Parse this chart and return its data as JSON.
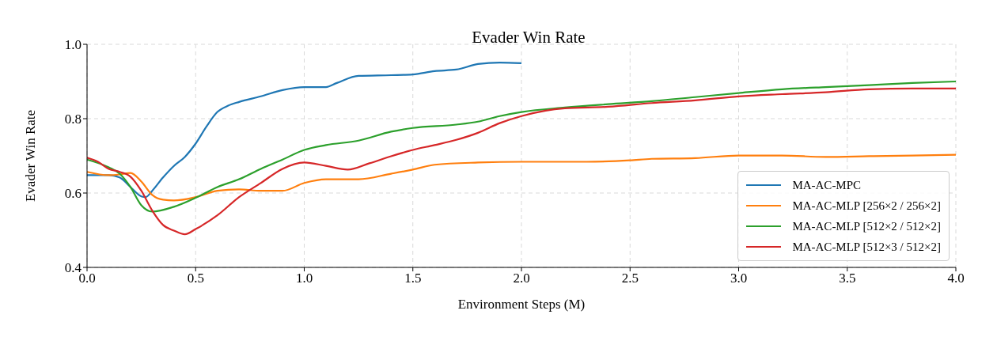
{
  "chart_data": {
    "type": "line",
    "title": "Evader Win Rate",
    "xlabel": "Environment Steps (M)",
    "ylabel": "Evader Win Rate",
    "xlim": [
      0,
      4
    ],
    "xticks": [
      {
        "value": 0,
        "label": "0.0"
      },
      {
        "value": 0.5,
        "label": "0.5"
      },
      {
        "value": 1,
        "label": "1.0"
      },
      {
        "value": 1.5,
        "label": "1.5"
      },
      {
        "value": 2,
        "label": "2.0"
      },
      {
        "value": 2.5,
        "label": "2.5"
      },
      {
        "value": 3,
        "label": "3.0"
      },
      {
        "value": 3.5,
        "label": "3.5"
      },
      {
        "value": 4,
        "label": "4.0"
      }
    ],
    "ylim": [
      0.4,
      1
    ],
    "yticks": [
      {
        "value": 0.4,
        "label": "0.4"
      },
      {
        "value": 0.6,
        "label": "0.6"
      },
      {
        "value": 0.8,
        "label": "0.8"
      },
      {
        "value": 1,
        "label": "1.0"
      }
    ],
    "grid": true,
    "legend": "bottom right",
    "line_style": "solid",
    "marker": "none",
    "series": [
      {
        "name": "MA-AC-MPC",
        "color": "#1f77b4",
        "x": [
          0,
          0.1,
          0.15,
          0.2,
          0.25,
          0.27,
          0.3,
          0.35,
          0.4,
          0.45,
          0.5,
          0.55,
          0.6,
          0.65,
          0.7,
          0.8,
          0.9,
          1.0,
          1.1,
          1.15,
          1.25,
          1.4,
          1.5,
          1.6,
          1.7,
          1.8,
          1.9,
          2.0
        ],
        "values": [
          0.648,
          0.648,
          0.642,
          0.616,
          0.591,
          0.589,
          0.606,
          0.642,
          0.673,
          0.697,
          0.733,
          0.779,
          0.818,
          0.835,
          0.845,
          0.86,
          0.877,
          0.885,
          0.885,
          0.896,
          0.915,
          0.917,
          0.919,
          0.928,
          0.932,
          0.947,
          0.951,
          0.949
        ]
      },
      {
        "name": "MA-AC-MLP [256×2 / 256×2]",
        "color": "#ff7f0e",
        "x": [
          0,
          0.1,
          0.15,
          0.2,
          0.25,
          0.3,
          0.35,
          0.4,
          0.5,
          0.6,
          0.7,
          0.8,
          0.9,
          1.0,
          1.1,
          1.25,
          1.4,
          1.5,
          1.6,
          1.8,
          2.0,
          2.3,
          2.5,
          2.6,
          2.8,
          3.0,
          3.2,
          3.4,
          3.6,
          3.8,
          4.0
        ],
        "values": [
          0.657,
          0.648,
          0.65,
          0.654,
          0.631,
          0.595,
          0.582,
          0.58,
          0.589,
          0.606,
          0.61,
          0.606,
          0.606,
          0.627,
          0.637,
          0.637,
          0.652,
          0.663,
          0.676,
          0.682,
          0.684,
          0.684,
          0.688,
          0.692,
          0.694,
          0.701,
          0.701,
          0.697,
          0.699,
          0.701,
          0.703
        ]
      },
      {
        "name": "MA-AC-MLP [512×2 / 512×2]",
        "color": "#2ca02c",
        "x": [
          0,
          0.1,
          0.15,
          0.2,
          0.25,
          0.3,
          0.4,
          0.5,
          0.6,
          0.7,
          0.8,
          0.9,
          1.0,
          1.1,
          1.25,
          1.4,
          1.5,
          1.7,
          1.8,
          1.9,
          2.0,
          2.2,
          2.4,
          2.6,
          2.8,
          3.0,
          3.2,
          3.4,
          3.6,
          3.8,
          4.0
        ],
        "values": [
          0.69,
          0.669,
          0.652,
          0.616,
          0.567,
          0.55,
          0.563,
          0.587,
          0.616,
          0.637,
          0.665,
          0.69,
          0.716,
          0.729,
          0.741,
          0.765,
          0.775,
          0.784,
          0.792,
          0.807,
          0.818,
          0.83,
          0.839,
          0.847,
          0.858,
          0.869,
          0.879,
          0.885,
          0.89,
          0.896,
          0.9
        ]
      },
      {
        "name": "MA-AC-MLP [512×3 / 512×2]",
        "color": "#d62728",
        "x": [
          0,
          0.05,
          0.1,
          0.15,
          0.2,
          0.25,
          0.3,
          0.35,
          0.4,
          0.45,
          0.5,
          0.6,
          0.7,
          0.8,
          0.9,
          1.0,
          1.1,
          1.2,
          1.3,
          1.4,
          1.5,
          1.6,
          1.7,
          1.8,
          1.9,
          2.0,
          2.2,
          2.4,
          2.6,
          2.8,
          3.0,
          3.2,
          3.4,
          3.6,
          3.8,
          4.0
        ],
        "values": [
          0.695,
          0.684,
          0.665,
          0.657,
          0.644,
          0.606,
          0.553,
          0.514,
          0.499,
          0.489,
          0.503,
          0.54,
          0.589,
          0.627,
          0.665,
          0.682,
          0.673,
          0.663,
          0.68,
          0.699,
          0.716,
          0.729,
          0.743,
          0.762,
          0.788,
          0.807,
          0.828,
          0.832,
          0.842,
          0.849,
          0.86,
          0.866,
          0.871,
          0.879,
          0.881,
          0.881
        ]
      }
    ]
  }
}
